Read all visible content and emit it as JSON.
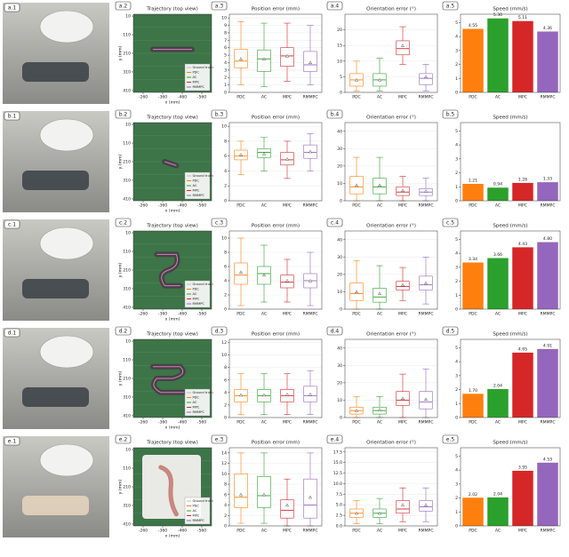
{
  "photos": [
    "a.1",
    "b.1",
    "c.1",
    "d.1",
    "e.1"
  ],
  "chart_data": [
    {
      "type": "trajectory",
      "panel_label": "a.2",
      "title": "Trajectory (top view)",
      "xlabel": "x (mm)",
      "ylabel": "y (mm)",
      "xlim": [
        -210,
        -610
      ],
      "xticks": [
        -260,
        -360,
        -460,
        -560
      ],
      "ylim": [
        420,
        0
      ],
      "yticks": [
        10,
        110,
        210,
        310,
        410
      ],
      "legend": [
        {
          "name": "Ground truth",
          "color": "#ffffff"
        },
        {
          "name": "PDC",
          "color": "#ff7f0e"
        },
        {
          "name": "AC",
          "color": "#2ca02c"
        },
        {
          "name": "MPC",
          "color": "#d62728"
        },
        {
          "name": "RMMPC",
          "color": "#9467bd"
        }
      ]
    },
    {
      "type": "box",
      "panel_label": "a.3",
      "title": "Position error (mm)",
      "categories": [
        "PDC",
        "AC",
        "MPC",
        "RMMPC"
      ],
      "colors": [
        "#ff7f0e",
        "#2ca02c",
        "#d62728",
        "#9467bd"
      ],
      "boxes": [
        {
          "low": 1,
          "q1": 3.3,
          "median": 4.2,
          "q3": 5.8,
          "high": 9.5,
          "mean": 4.5
        },
        {
          "low": 0.8,
          "q1": 2.8,
          "median": 4.5,
          "q3": 5.7,
          "high": 9.3,
          "mean": 4.5
        },
        {
          "low": 1.5,
          "q1": 3.5,
          "median": 4.9,
          "q3": 6,
          "high": 9.3,
          "mean": 4.9
        },
        {
          "low": 1,
          "q1": 2.8,
          "median": 3.7,
          "q3": 5.5,
          "high": 9,
          "mean": 4
        }
      ],
      "ylim": [
        0,
        10.5
      ],
      "yticks": [
        0,
        1,
        2,
        3,
        4,
        5,
        6,
        7,
        8,
        9,
        10
      ],
      "grid": true
    },
    {
      "type": "box",
      "panel_label": "a.4",
      "title": "Orientation error (°)",
      "categories": [
        "PDC",
        "AC",
        "MPC",
        "RMMPC"
      ],
      "colors": [
        "#ff7f0e",
        "#2ca02c",
        "#d62728",
        "#9467bd"
      ],
      "boxes": [
        {
          "low": 0.5,
          "q1": 2,
          "median": 4,
          "q3": 6,
          "high": 10,
          "mean": 4
        },
        {
          "low": 0.5,
          "q1": 2,
          "median": 4,
          "q3": 6,
          "high": 11,
          "mean": 4
        },
        {
          "low": 9,
          "q1": 12,
          "median": 14,
          "q3": 16.5,
          "high": 21,
          "mean": 15
        },
        {
          "low": 0.5,
          "q1": 2.5,
          "median": 4.5,
          "q3": 6,
          "high": 9,
          "mean": 5
        }
      ],
      "ylim": [
        0,
        25
      ],
      "yticks": [
        0,
        5,
        10,
        15,
        20
      ],
      "grid": true
    },
    {
      "type": "bar",
      "panel_label": "a.5",
      "title": "Speed (mm/s)",
      "categories": [
        "PDC",
        "AC",
        "MPC",
        "RMMPC"
      ],
      "colors": [
        "#ff7f0e",
        "#2ca02c",
        "#d62728",
        "#9467bd"
      ],
      "values": [
        4.55,
        5.3,
        5.11,
        4.36
      ],
      "value_labels": [
        "4.55",
        "5.30",
        "5.11",
        "4.36"
      ],
      "ylim": [
        0,
        5.6
      ],
      "yticks": [
        0,
        1,
        2,
        3,
        4,
        5
      ]
    },
    {
      "type": "trajectory",
      "panel_label": "b.2",
      "title": "Trajectory (top view)",
      "xlabel": "x (mm)",
      "ylabel": "y (mm)",
      "xlim": [
        -210,
        -610
      ],
      "xticks": [
        -260,
        -360,
        -460,
        -560
      ],
      "ylim": [
        420,
        0
      ],
      "yticks": [
        10,
        110,
        210,
        310,
        410
      ],
      "legend": [
        {
          "name": "Ground truth",
          "color": "#ffffff"
        },
        {
          "name": "PDC",
          "color": "#ff7f0e"
        },
        {
          "name": "AC",
          "color": "#2ca02c"
        },
        {
          "name": "MPC",
          "color": "#d62728"
        },
        {
          "name": "RMMPC",
          "color": "#9467bd"
        }
      ]
    },
    {
      "type": "box",
      "panel_label": "b.3",
      "title": "Position error (mm)",
      "categories": [
        "PDC",
        "AC",
        "MPC",
        "RMMPC"
      ],
      "colors": [
        "#ff7f0e",
        "#2ca02c",
        "#d62728",
        "#9467bd"
      ],
      "boxes": [
        {
          "low": 3.5,
          "q1": 5.5,
          "median": 6,
          "q3": 6.8,
          "high": 8,
          "mean": 6.2
        },
        {
          "low": 4,
          "q1": 5.8,
          "median": 6.5,
          "q3": 7,
          "high": 8.5,
          "mean": 6.3
        },
        {
          "low": 3,
          "q1": 4.8,
          "median": 5.5,
          "q3": 6.5,
          "high": 8,
          "mean": 5.6
        },
        {
          "low": 4,
          "q1": 5.7,
          "median": 6.5,
          "q3": 7.5,
          "high": 9,
          "mean": 6.6
        }
      ],
      "ylim": [
        0,
        10.5
      ],
      "yticks": [
        0,
        2,
        4,
        6,
        8,
        10
      ],
      "grid": true
    },
    {
      "type": "box",
      "panel_label": "b.4",
      "title": "Orientation error (°)",
      "categories": [
        "PDC",
        "AC",
        "MPC",
        "RMMPC"
      ],
      "colors": [
        "#ff7f0e",
        "#2ca02c",
        "#d62728",
        "#9467bd"
      ],
      "boxes": [
        {
          "low": 0,
          "q1": 4,
          "median": 8,
          "q3": 14,
          "high": 25,
          "mean": 9
        },
        {
          "low": 0,
          "q1": 4,
          "median": 8,
          "q3": 13,
          "high": 25,
          "mean": 9
        },
        {
          "low": 0,
          "q1": 3,
          "median": 5,
          "q3": 8,
          "high": 14,
          "mean": 6
        },
        {
          "low": 0,
          "q1": 3,
          "median": 5,
          "q3": 7,
          "high": 13,
          "mean": 5.5
        }
      ],
      "ylim": [
        0,
        45
      ],
      "yticks": [
        0,
        10,
        20,
        30,
        40
      ],
      "grid": true
    },
    {
      "type": "bar",
      "panel_label": "b.5",
      "title": "Speed (mm/s)",
      "categories": [
        "PDC",
        "AC",
        "MPC",
        "RMMPC"
      ],
      "colors": [
        "#ff7f0e",
        "#2ca02c",
        "#d62728",
        "#9467bd"
      ],
      "values": [
        1.21,
        0.94,
        1.28,
        1.33
      ],
      "value_labels": [
        "1.21",
        "0.94",
        "1.28",
        "1.33"
      ],
      "ylim": [
        0,
        5.6
      ],
      "yticks": [
        0,
        1,
        2,
        3,
        4,
        5
      ]
    },
    {
      "type": "trajectory",
      "panel_label": "c.2",
      "title": "Trajectory (top view)",
      "xlabel": "x (mm)",
      "ylabel": "y (mm)",
      "xlim": [
        -210,
        -610
      ],
      "xticks": [
        -260,
        -360,
        -460,
        -560
      ],
      "ylim": [
        420,
        0
      ],
      "yticks": [
        10,
        110,
        210,
        310,
        410
      ],
      "legend": [
        {
          "name": "Ground truth",
          "color": "#ffffff"
        },
        {
          "name": "PDC",
          "color": "#ff7f0e"
        },
        {
          "name": "AC",
          "color": "#2ca02c"
        },
        {
          "name": "MPC",
          "color": "#d62728"
        },
        {
          "name": "RMMPC",
          "color": "#9467bd"
        }
      ]
    },
    {
      "type": "box",
      "panel_label": "c.3",
      "title": "Position error (mm)",
      "categories": [
        "PDC",
        "AC",
        "MPC",
        "RMMPC"
      ],
      "colors": [
        "#ff7f0e",
        "#2ca02c",
        "#d62728",
        "#9467bd"
      ],
      "boxes": [
        {
          "low": 0.5,
          "q1": 3.5,
          "median": 4.8,
          "q3": 6.5,
          "high": 10,
          "mean": 5.2
        },
        {
          "low": 1,
          "q1": 3.5,
          "median": 5,
          "q3": 6,
          "high": 9,
          "mean": 4.8
        },
        {
          "low": 1,
          "q1": 3,
          "median": 3.8,
          "q3": 4.8,
          "high": 7,
          "mean": 4
        },
        {
          "low": 0.5,
          "q1": 3,
          "median": 4,
          "q3": 5,
          "high": 8,
          "mean": 4
        }
      ],
      "ylim": [
        0,
        11
      ],
      "yticks": [
        0,
        2,
        4,
        6,
        8,
        10
      ],
      "grid": true
    },
    {
      "type": "box",
      "panel_label": "c.4",
      "title": "Orientation error (°)",
      "categories": [
        "PDC",
        "AC",
        "MPC",
        "RMMPC"
      ],
      "colors": [
        "#ff7f0e",
        "#2ca02c",
        "#d62728",
        "#9467bd"
      ],
      "boxes": [
        {
          "low": 0,
          "q1": 5,
          "median": 9,
          "q3": 15,
          "high": 28,
          "mean": 10
        },
        {
          "low": 0,
          "q1": 4,
          "median": 7,
          "q3": 12,
          "high": 25,
          "mean": 9
        },
        {
          "low": 5,
          "q1": 11,
          "median": 13,
          "q3": 16,
          "high": 24,
          "mean": 14
        },
        {
          "low": 3,
          "q1": 11,
          "median": 14,
          "q3": 19,
          "high": 30,
          "mean": 15
        }
      ],
      "ylim": [
        0,
        45
      ],
      "yticks": [
        0,
        10,
        20,
        30,
        40
      ],
      "grid": true
    },
    {
      "type": "bar",
      "panel_label": "c.5",
      "title": "Speed (mm/s)",
      "categories": [
        "PDC",
        "AC",
        "MPC",
        "RMMPC"
      ],
      "colors": [
        "#ff7f0e",
        "#2ca02c",
        "#d62728",
        "#9467bd"
      ],
      "values": [
        3.34,
        3.66,
        4.43,
        4.8
      ],
      "value_labels": [
        "3.34",
        "3.66",
        "4.43",
        "4.80"
      ],
      "ylim": [
        0,
        5.6
      ],
      "yticks": [
        0,
        1,
        2,
        3,
        4,
        5
      ]
    },
    {
      "type": "trajectory",
      "panel_label": "d.2",
      "title": "Trajectory (top view)",
      "xlabel": "x (mm)",
      "ylabel": "y (mm)",
      "xlim": [
        -210,
        -610
      ],
      "xticks": [
        -260,
        -360,
        -460,
        -560
      ],
      "ylim": [
        420,
        0
      ],
      "yticks": [
        10,
        110,
        210,
        310,
        410
      ],
      "legend": [
        {
          "name": "Ground truth",
          "color": "#ffffff"
        },
        {
          "name": "PDC",
          "color": "#ff7f0e"
        },
        {
          "name": "AC",
          "color": "#2ca02c"
        },
        {
          "name": "MPC",
          "color": "#d62728"
        },
        {
          "name": "RMMPC",
          "color": "#9467bd"
        }
      ]
    },
    {
      "type": "box",
      "panel_label": "d.3",
      "title": "Position error (mm)",
      "categories": [
        "PDC",
        "AC",
        "MPC",
        "RMMPC"
      ],
      "colors": [
        "#ff7f0e",
        "#2ca02c",
        "#d62728",
        "#9467bd"
      ],
      "boxes": [
        {
          "low": 0.5,
          "q1": 2.5,
          "median": 3.5,
          "q3": 4.5,
          "high": 7,
          "mean": 3.6
        },
        {
          "low": 0.5,
          "q1": 2.5,
          "median": 3.5,
          "q3": 4.5,
          "high": 7,
          "mean": 3.6
        },
        {
          "low": 0.5,
          "q1": 2.5,
          "median": 3.5,
          "q3": 4.5,
          "high": 7,
          "mean": 3.7
        },
        {
          "low": 0.5,
          "q1": 2.5,
          "median": 3.5,
          "q3": 5,
          "high": 7.5,
          "mean": 3.7
        }
      ],
      "ylim": [
        0,
        12.5
      ],
      "yticks": [
        0,
        2,
        4,
        6,
        8,
        10,
        12
      ],
      "grid": true
    },
    {
      "type": "box",
      "panel_label": "d.4",
      "title": "Orientation error (°)",
      "categories": [
        "PDC",
        "AC",
        "MPC",
        "RMMPC"
      ],
      "colors": [
        "#ff7f0e",
        "#2ca02c",
        "#d62728",
        "#9467bd"
      ],
      "boxes": [
        {
          "low": 0,
          "q1": 2,
          "median": 4,
          "q3": 6,
          "high": 12,
          "mean": 4
        },
        {
          "low": 0,
          "q1": 2,
          "median": 4,
          "q3": 6,
          "high": 12,
          "mean": 4.5
        },
        {
          "low": 0,
          "q1": 7,
          "median": 10,
          "q3": 15,
          "high": 25,
          "mean": 11
        },
        {
          "low": 0,
          "q1": 5,
          "median": 9,
          "q3": 15,
          "high": 28,
          "mean": 10.5
        }
      ],
      "ylim": [
        0,
        45
      ],
      "yticks": [
        0,
        10,
        20,
        30,
        40
      ],
      "grid": true
    },
    {
      "type": "bar",
      "panel_label": "d.5",
      "title": "Speed (mm/s)",
      "categories": [
        "PDC",
        "AC",
        "MPC",
        "RMMPC"
      ],
      "colors": [
        "#ff7f0e",
        "#2ca02c",
        "#d62728",
        "#9467bd"
      ],
      "values": [
        1.7,
        2.04,
        4.65,
        4.91
      ],
      "value_labels": [
        "1.70",
        "2.04",
        "4.65",
        "4.91"
      ],
      "ylim": [
        0,
        5.6
      ],
      "yticks": [
        0,
        1,
        2,
        3,
        4,
        5
      ]
    },
    {
      "type": "trajectory",
      "panel_label": "e.2",
      "title": "Trajectory (top view)",
      "xlabel": "x (mm)",
      "ylabel": "y (mm)",
      "xlim": [
        -210,
        -610
      ],
      "xticks": [
        -260,
        -360,
        -460,
        -560
      ],
      "ylim": [
        420,
        0
      ],
      "yticks": [
        10,
        110,
        210,
        310,
        410
      ],
      "legend": [
        {
          "name": "Ground truth",
          "color": "#ffffff"
        },
        {
          "name": "PDC",
          "color": "#ff7f0e"
        },
        {
          "name": "AC",
          "color": "#2ca02c"
        },
        {
          "name": "MPC",
          "color": "#d62728"
        },
        {
          "name": "RMMPC",
          "color": "#9467bd"
        }
      ]
    },
    {
      "type": "box",
      "panel_label": "e.3",
      "title": "Position error (mm)",
      "categories": [
        "PDC",
        "AC",
        "MPC",
        "RMMPC"
      ],
      "colors": [
        "#ff7f0e",
        "#2ca02c",
        "#d62728",
        "#9467bd"
      ],
      "boxes": [
        {
          "low": 0.5,
          "q1": 3.5,
          "median": 5.5,
          "q3": 10,
          "high": 14,
          "mean": 6
        },
        {
          "low": 0.5,
          "q1": 3.5,
          "median": 5.8,
          "q3": 9.5,
          "high": 14,
          "mean": 6
        },
        {
          "low": 0,
          "q1": 1.5,
          "median": 3,
          "q3": 5,
          "high": 9,
          "mean": 4
        },
        {
          "low": 0,
          "q1": 1.5,
          "median": 4,
          "q3": 9,
          "high": 14,
          "mean": 5.5
        }
      ],
      "ylim": [
        0,
        15
      ],
      "yticks": [
        0,
        2,
        4,
        6,
        8,
        10,
        12,
        14
      ],
      "grid": true
    },
    {
      "type": "box",
      "panel_label": "e.4",
      "title": "Orientation error (°)",
      "categories": [
        "PDC",
        "AC",
        "MPC",
        "RMMPC"
      ],
      "colors": [
        "#ff7f0e",
        "#2ca02c",
        "#d62728",
        "#9467bd"
      ],
      "boxes": [
        {
          "low": 0.5,
          "q1": 2,
          "median": 3,
          "q3": 4,
          "high": 6,
          "mean": 3
        },
        {
          "low": 0.5,
          "q1": 2,
          "median": 3,
          "q3": 4,
          "high": 6.5,
          "mean": 3
        },
        {
          "low": 1,
          "q1": 3,
          "median": 4,
          "q3": 6,
          "high": 9,
          "mean": 5
        },
        {
          "low": 1,
          "q1": 3.5,
          "median": 4.5,
          "q3": 6,
          "high": 9,
          "mean": 5
        }
      ],
      "ylim": [
        0,
        18.5
      ],
      "yticks": [
        {
          "value": 0,
          "label": "0.0"
        },
        2.5,
        {
          "value": 5,
          "label": "5.0"
        },
        7.5,
        {
          "value": 10,
          "label": "10.0"
        },
        12.5,
        {
          "value": 15,
          "label": "15.0"
        },
        17.5
      ],
      "grid": true
    },
    {
      "type": "bar",
      "panel_label": "e.5",
      "title": "Speed (mm/s)",
      "categories": [
        "PDC",
        "AC",
        "MPC",
        "RMMPC"
      ],
      "colors": [
        "#ff7f0e",
        "#2ca02c",
        "#d62728",
        "#9467bd"
      ],
      "values": [
        2.02,
        2.04,
        3.95,
        4.53
      ],
      "value_labels": [
        "2.02",
        "2.04",
        "3.95",
        "4.53"
      ],
      "ylim": [
        0,
        5.6
      ],
      "yticks": [
        0,
        1,
        2,
        3,
        4,
        5
      ]
    }
  ]
}
